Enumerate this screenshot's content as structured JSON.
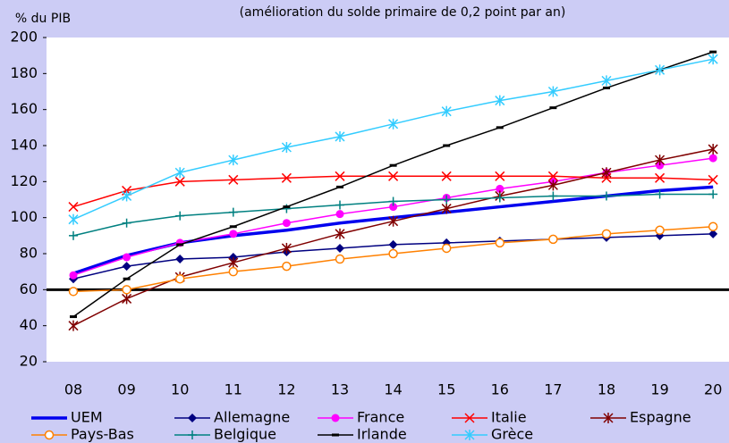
{
  "chart_data": {
    "type": "line",
    "title": "(amélioration du solde primaire de 0,2 point par an)",
    "ylabel": "% du PIB",
    "categories": [
      "08",
      "09",
      "10",
      "11",
      "12",
      "13",
      "14",
      "15",
      "16",
      "17",
      "18",
      "19",
      "20"
    ],
    "ylim": [
      20,
      200
    ],
    "yticks": [
      20,
      40,
      60,
      80,
      100,
      120,
      140,
      160,
      180,
      200
    ],
    "hline": 60,
    "series": [
      {
        "name": "UEM",
        "color": "#0000ee",
        "marker": "none",
        "values": [
          69,
          79,
          86,
          90,
          93,
          97,
          100,
          103,
          106,
          109,
          112,
          115,
          117
        ]
      },
      {
        "name": "Allemagne",
        "color": "#000080",
        "marker": "diamond",
        "values": [
          66,
          73,
          77,
          78,
          81,
          83,
          85,
          86,
          87,
          88,
          89,
          90,
          91
        ]
      },
      {
        "name": "France",
        "color": "#ff00ff",
        "marker": "circle",
        "values": [
          68,
          78,
          86,
          91,
          97,
          102,
          106,
          111,
          116,
          120,
          125,
          129,
          133
        ]
      },
      {
        "name": "Italie",
        "color": "#ff0000",
        "marker": "x",
        "values": [
          106,
          115,
          120,
          121,
          122,
          123,
          123,
          123,
          123,
          123,
          122,
          122,
          121
        ]
      },
      {
        "name": "Espagne",
        "color": "#800000",
        "marker": "star",
        "values": [
          40,
          55,
          67,
          75,
          83,
          91,
          98,
          105,
          112,
          118,
          125,
          132,
          138
        ]
      },
      {
        "name": "Pays-Bas",
        "color": "#ff8000",
        "marker": "open-circle",
        "values": [
          59,
          60,
          66,
          70,
          73,
          77,
          80,
          83,
          86,
          88,
          91,
          93,
          95
        ]
      },
      {
        "name": "Belgique",
        "color": "#008080",
        "marker": "plus",
        "values": [
          90,
          97,
          101,
          103,
          105,
          107,
          109,
          110,
          111,
          112,
          112,
          113,
          113
        ]
      },
      {
        "name": "Irlande",
        "color": "#000000",
        "marker": "dash",
        "values": [
          45,
          66,
          85,
          95,
          106,
          117,
          129,
          140,
          150,
          161,
          172,
          182,
          192
        ]
      },
      {
        "name": "Grèce",
        "color": "#33ccff",
        "marker": "star",
        "values": [
          99,
          112,
          125,
          132,
          139,
          145,
          152,
          159,
          165,
          170,
          176,
          182,
          188
        ]
      }
    ]
  }
}
